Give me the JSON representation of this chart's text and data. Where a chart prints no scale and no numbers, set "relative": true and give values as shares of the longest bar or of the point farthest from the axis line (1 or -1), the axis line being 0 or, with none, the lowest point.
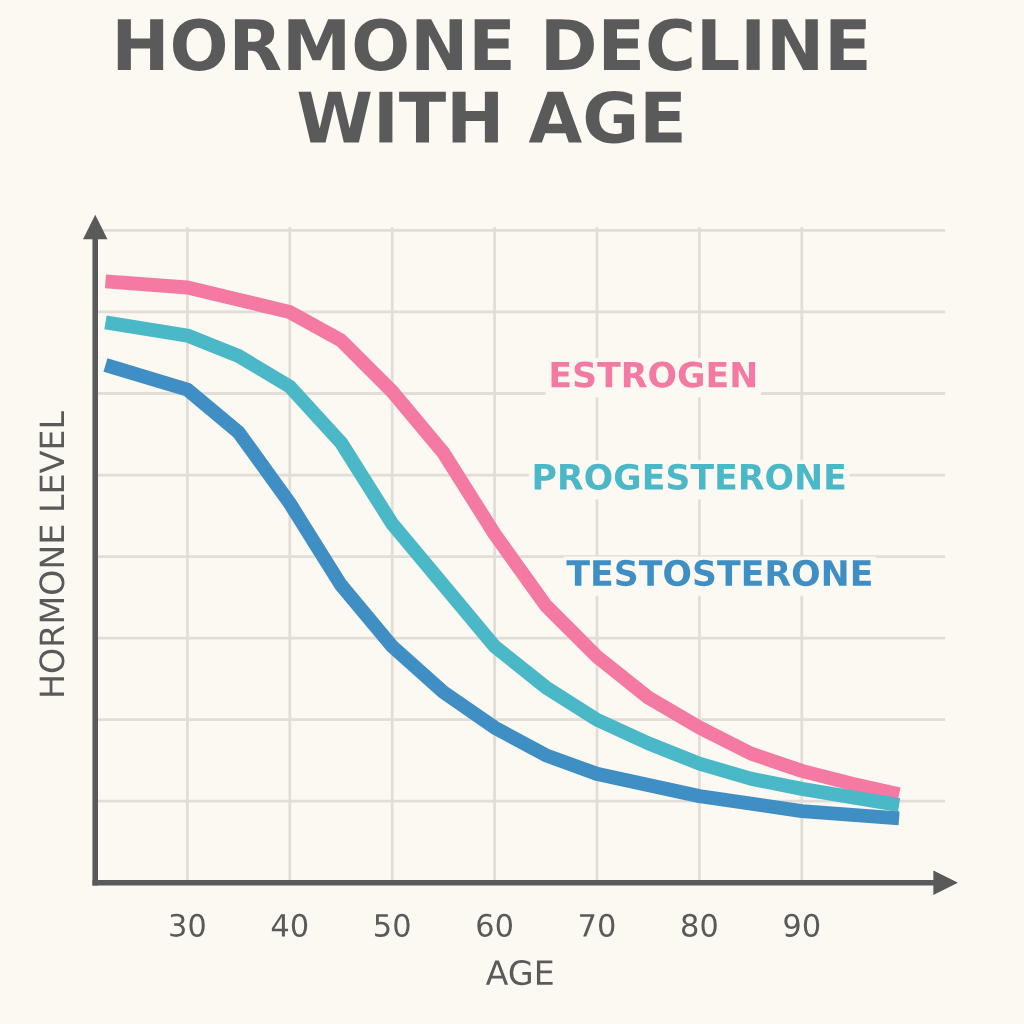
{
  "chart_data": {
    "type": "line",
    "title": "HORMONE DECLINE\nWITH AGE",
    "xlabel": "AGE",
    "ylabel": "HORMONE LEVEL",
    "relative": true,
    "grid": true,
    "legend": false,
    "marker": "none",
    "line_style": "solid",
    "xlim": [
      21,
      104
    ],
    "xticks": [
      30,
      40,
      50,
      60,
      70,
      80,
      90
    ],
    "series": [
      {
        "name": "ESTROGEN",
        "color": "#f47aa3",
        "x": [
          22,
          30,
          40,
          45,
          50,
          55,
          60,
          65,
          70,
          75,
          80,
          85,
          90,
          95,
          99.5
        ],
        "values": [
          1.0,
          0.99,
          0.949,
          0.902,
          0.817,
          0.715,
          0.58,
          0.461,
          0.376,
          0.308,
          0.258,
          0.215,
          0.186,
          0.164,
          0.147
        ]
      },
      {
        "name": "PROGESTERONE",
        "color": "#4bb8c8",
        "x": [
          22,
          30,
          35,
          40,
          45,
          50,
          55,
          60,
          65,
          70,
          75,
          80,
          85,
          90,
          99.5
        ],
        "values": [
          0.932,
          0.91,
          0.876,
          0.825,
          0.732,
          0.597,
          0.495,
          0.393,
          0.325,
          0.271,
          0.232,
          0.198,
          0.173,
          0.156,
          0.129
        ]
      },
      {
        "name": "TESTOSTERONE",
        "color": "#3f8fc4",
        "x": [
          22,
          30,
          35,
          40,
          45,
          50,
          55,
          60,
          65,
          70,
          80,
          90,
          99.5
        ],
        "values": [
          0.861,
          0.82,
          0.749,
          0.631,
          0.495,
          0.393,
          0.317,
          0.258,
          0.212,
          0.181,
          0.144,
          0.119,
          0.107
        ]
      }
    ]
  }
}
